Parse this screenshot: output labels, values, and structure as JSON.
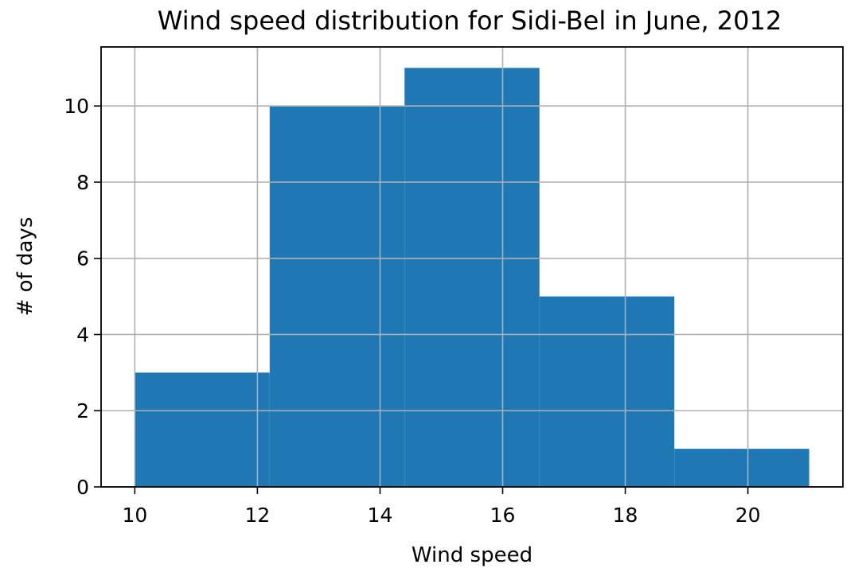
{
  "chart_data": {
    "type": "bar",
    "title": "Wind speed distribution for Sidi-Bel in June, 2012",
    "xlabel": "Wind speed",
    "ylabel": "# of days",
    "bins": [
      {
        "x0": 10.0,
        "x1": 12.2,
        "count": 3
      },
      {
        "x0": 12.2,
        "x1": 14.4,
        "count": 10
      },
      {
        "x0": 14.4,
        "x1": 16.6,
        "count": 11
      },
      {
        "x0": 16.6,
        "x1": 18.8,
        "count": 5
      },
      {
        "x0": 18.8,
        "x1": 21.0,
        "count": 1
      }
    ],
    "xlim": [
      9.45,
      21.55
    ],
    "ylim": [
      0,
      11.55
    ],
    "xticks": [
      10,
      12,
      14,
      16,
      18,
      20
    ],
    "yticks": [
      0,
      2,
      4,
      6,
      8,
      10
    ],
    "grid": true,
    "bar_color": "#1f77b4",
    "grid_color": "#b0b0b0"
  }
}
